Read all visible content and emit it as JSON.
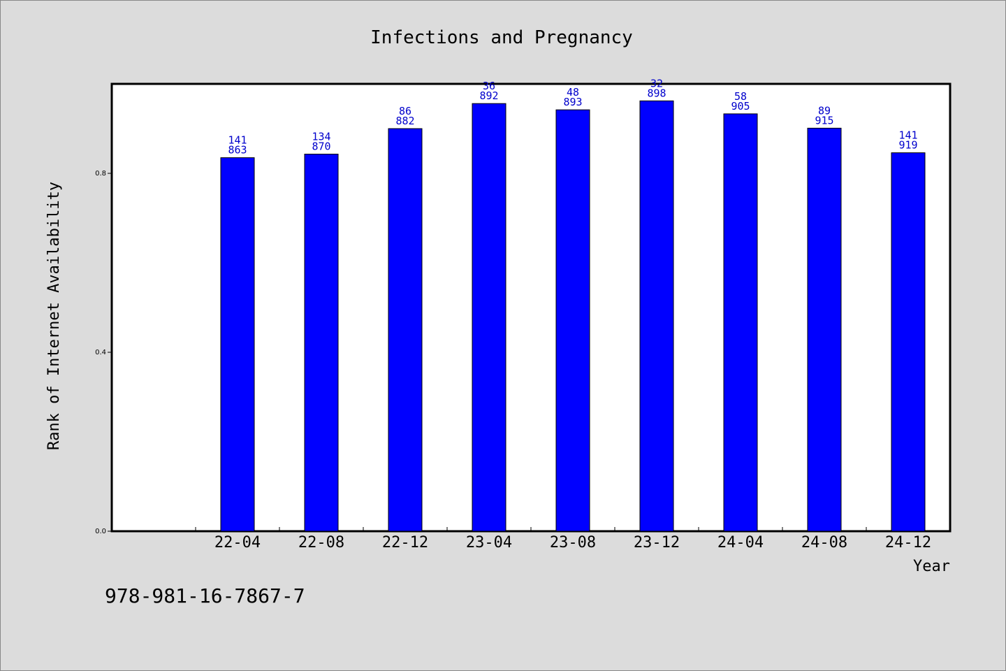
{
  "chart_data": {
    "type": "bar",
    "title": "Infections and Pregnancy",
    "xlabel": "Year",
    "ylabel": "Rank of Internet Availability",
    "categories": [
      "22-04",
      "22-08",
      "22-12",
      "23-04",
      "23-08",
      "23-12",
      "24-04",
      "24-08",
      "24-12"
    ],
    "values": [
      0.835,
      0.843,
      0.9,
      0.956,
      0.942,
      0.962,
      0.933,
      0.901,
      0.846
    ],
    "bar_labels_top": [
      "141",
      "134",
      "86",
      "36",
      "48",
      "32",
      "58",
      "89",
      "141"
    ],
    "bar_labels_bottom": [
      "863",
      "870",
      "882",
      "892",
      "893",
      "898",
      "905",
      "915",
      "919"
    ],
    "ylim": [
      0,
      1.0
    ],
    "yticks": [
      0.0,
      0.4,
      0.8
    ],
    "ytick_labels": [
      "0.0",
      "0.4",
      "0.8"
    ],
    "grid": false,
    "bar_color": "#0000ff",
    "label_color": "#0000cc"
  },
  "footer": {
    "isbn": "978-981-16-7867-7"
  }
}
